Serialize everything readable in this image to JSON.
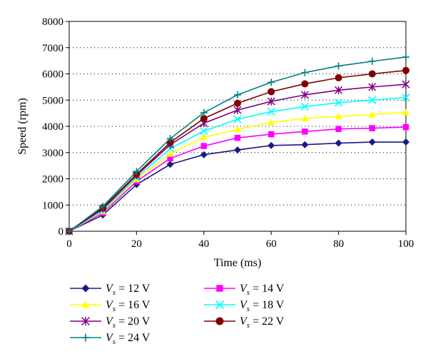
{
  "chart_data": {
    "type": "line",
    "title": "",
    "xlabel": "Time (ms)",
    "ylabel": "Speed (rpm)",
    "xlim": [
      0,
      100
    ],
    "ylim": [
      0,
      8000
    ],
    "x_ticks": [
      0,
      20,
      40,
      60,
      80,
      100
    ],
    "y_ticks": [
      0,
      1000,
      2000,
      3000,
      4000,
      5000,
      6000,
      7000,
      8000
    ],
    "grid": "horizontal dotted",
    "legend_position": "bottom",
    "x": [
      0,
      10,
      20,
      30,
      40,
      50,
      60,
      70,
      80,
      90,
      100
    ],
    "series": [
      {
        "name_var": "V",
        "name_sub": "s",
        "name_rest": " = 12 V",
        "color": "#1a1a80",
        "marker": "diamond",
        "values": [
          0,
          620,
          1780,
          2550,
          2920,
          3100,
          3270,
          3300,
          3360,
          3400,
          3400
        ]
      },
      {
        "name_var": "V",
        "name_sub": "s",
        "name_rest": " = 14 V",
        "color": "#ff00ff",
        "marker": "square",
        "values": [
          0,
          700,
          1900,
          2780,
          3250,
          3560,
          3700,
          3800,
          3900,
          3930,
          3970
        ]
      },
      {
        "name_var": "V",
        "name_sub": "s",
        "name_rest": " = 16 V",
        "color": "#ffff00",
        "marker": "triangle",
        "values": [
          0,
          760,
          1980,
          2950,
          3580,
          3880,
          4150,
          4300,
          4380,
          4450,
          4530
        ]
      },
      {
        "name_var": "V",
        "name_sub": "s",
        "name_rest": " = 18 V",
        "color": "#00ffff",
        "marker": "x",
        "values": [
          0,
          800,
          2050,
          3150,
          3820,
          4270,
          4560,
          4750,
          4900,
          5000,
          5100
        ]
      },
      {
        "name_var": "V",
        "name_sub": "s",
        "name_rest": " = 20 V",
        "color": "#800080",
        "marker": "star",
        "values": [
          0,
          850,
          2130,
          3300,
          4120,
          4620,
          4950,
          5200,
          5380,
          5500,
          5600
        ]
      },
      {
        "name_var": "V",
        "name_sub": "s",
        "name_rest": " = 22 V",
        "color": "#800000",
        "marker": "circle",
        "values": [
          0,
          900,
          2170,
          3380,
          4300,
          4880,
          5320,
          5620,
          5850,
          6000,
          6130
        ]
      },
      {
        "name_var": "V",
        "name_sub": "s",
        "name_rest": " = 24 V",
        "color": "#008080",
        "marker": "plus",
        "values": [
          0,
          950,
          2280,
          3530,
          4520,
          5200,
          5680,
          6050,
          6300,
          6480,
          6640
        ]
      }
    ]
  }
}
